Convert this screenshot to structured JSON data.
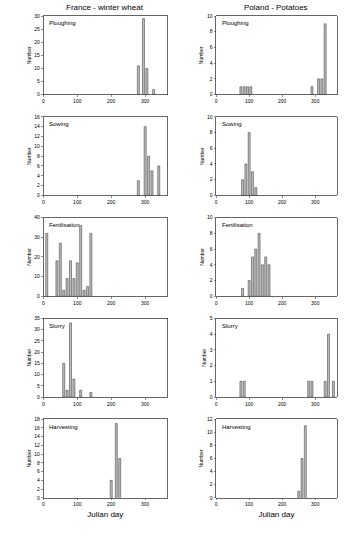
{
  "chart_data": [
    {
      "type": "bar",
      "title": "Ploughing",
      "subtitle": "France - winter wheat",
      "y_label": "Number",
      "color": "#bdbdbd",
      "x": [
        280,
        295,
        305,
        325
      ],
      "values": [
        11,
        29,
        10,
        2
      ],
      "xlim": [
        0,
        365
      ],
      "xticks": [
        0,
        100,
        200,
        300
      ],
      "ylim": [
        0,
        30
      ],
      "yticks": [
        0,
        5,
        10,
        15,
        20,
        25,
        30
      ],
      "grid": false
    },
    {
      "type": "bar",
      "title": "Sowing",
      "y_label": "Number",
      "color": "#bdbdbd",
      "x": [
        280,
        300,
        310,
        320,
        340
      ],
      "values": [
        3,
        14,
        8,
        5,
        6
      ],
      "xlim": [
        0,
        365
      ],
      "xticks": [
        0,
        100,
        200,
        300
      ],
      "ylim": [
        0,
        16
      ],
      "yticks": [
        0,
        2,
        4,
        6,
        8,
        10,
        12,
        14,
        16
      ],
      "grid": false
    },
    {
      "type": "bar",
      "title": "Fertilisation",
      "y_label": "Number",
      "color": "#bdbdbd",
      "x": [
        10,
        40,
        50,
        60,
        70,
        80,
        90,
        100,
        110,
        120,
        130,
        140
      ],
      "values": [
        32,
        18,
        27,
        3,
        9,
        18,
        9,
        17,
        36,
        3,
        5,
        32
      ],
      "xlim": [
        0,
        365
      ],
      "xticks": [
        0,
        100,
        200,
        300
      ],
      "ylim": [
        0,
        40
      ],
      "yticks": [
        0,
        10,
        20,
        30,
        40
      ],
      "grid": false
    },
    {
      "type": "bar",
      "title": "Slurry",
      "y_label": "Number",
      "color": "#bdbdbd",
      "x": [
        60,
        70,
        80,
        90,
        110,
        140
      ],
      "values": [
        15,
        3,
        33,
        8,
        3,
        2
      ],
      "xlim": [
        0,
        365
      ],
      "xticks": [
        0,
        100,
        200,
        300
      ],
      "ylim": [
        0,
        35
      ],
      "yticks": [
        0,
        5,
        10,
        15,
        20,
        25,
        30,
        35
      ],
      "grid": false
    },
    {
      "type": "bar",
      "title": "Harvesting",
      "y_label": "Number",
      "x_label": "Julian day",
      "color": "#bdbdbd",
      "x": [
        200,
        215,
        225
      ],
      "values": [
        4,
        17,
        9
      ],
      "xlim": [
        0,
        365
      ],
      "xticks": [
        0,
        100,
        200,
        300
      ],
      "ylim": [
        0,
        18
      ],
      "yticks": [
        0,
        2,
        4,
        6,
        8,
        10,
        12,
        14,
        16,
        18
      ],
      "grid": false
    },
    {
      "type": "bar",
      "title": "Ploughing",
      "subtitle": "Poland - Potatoes",
      "y_label": "Number",
      "color": "#bdbdbd",
      "x": [
        75,
        85,
        95,
        105,
        290,
        310,
        320,
        330
      ],
      "values": [
        1,
        1,
        1,
        1,
        1,
        2,
        2,
        9
      ],
      "xlim": [
        0,
        365
      ],
      "xticks": [
        0,
        100,
        200,
        300
      ],
      "ylim": [
        0,
        10
      ],
      "yticks": [
        0,
        2,
        4,
        6,
        8,
        10
      ],
      "grid": false
    },
    {
      "type": "bar",
      "title": "Sowing",
      "y_label": "Number",
      "color": "#bdbdbd",
      "x": [
        80,
        90,
        100,
        110,
        120
      ],
      "values": [
        2,
        4,
        8,
        3,
        1
      ],
      "xlim": [
        0,
        365
      ],
      "xticks": [
        0,
        100,
        200,
        300
      ],
      "ylim": [
        0,
        10
      ],
      "yticks": [
        0,
        2,
        4,
        6,
        8,
        10
      ],
      "grid": false
    },
    {
      "type": "bar",
      "title": "Fertilisation",
      "y_label": "Number",
      "color": "#bdbdbd",
      "x": [
        80,
        100,
        110,
        120,
        130,
        140,
        150,
        160
      ],
      "values": [
        1,
        2,
        5,
        6,
        8,
        4,
        5,
        4
      ],
      "xlim": [
        0,
        365
      ],
      "xticks": [
        0,
        100,
        200,
        300
      ],
      "ylim": [
        0,
        10
      ],
      "yticks": [
        0,
        2,
        4,
        6,
        8,
        10
      ],
      "grid": false
    },
    {
      "type": "bar",
      "title": "Slurry",
      "y_label": "Number",
      "color": "#bdbdbd",
      "x": [
        75,
        85,
        280,
        290,
        330,
        340,
        355
      ],
      "values": [
        1,
        1,
        1,
        1,
        1,
        4,
        1
      ],
      "xlim": [
        0,
        365
      ],
      "xticks": [
        0,
        100,
        200,
        300
      ],
      "ylim": [
        0,
        5
      ],
      "yticks": [
        0,
        1,
        2,
        3,
        4,
        5
      ],
      "grid": false
    },
    {
      "type": "bar",
      "title": "Harvesting",
      "y_label": "Number",
      "x_label": "Julian day",
      "color": "#bdbdbd",
      "x": [
        250,
        260,
        270
      ],
      "values": [
        1,
        6,
        11
      ],
      "xlim": [
        0,
        365
      ],
      "xticks": [
        0,
        100,
        200,
        300
      ],
      "ylim": [
        0,
        12
      ],
      "yticks": [
        0,
        2,
        4,
        6,
        8,
        10,
        12
      ],
      "grid": false
    }
  ]
}
